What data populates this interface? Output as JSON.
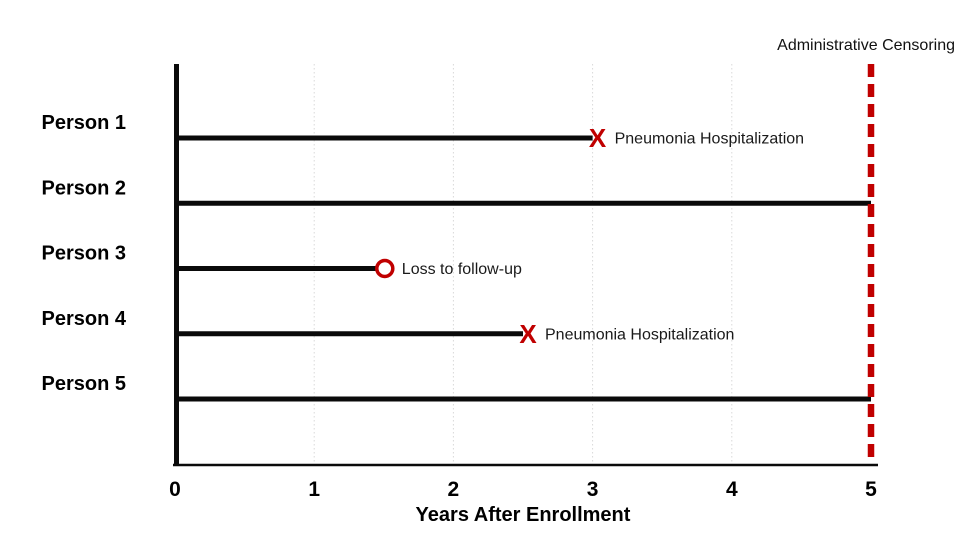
{
  "page": {
    "background": "#ffffff"
  },
  "chart_data": {
    "type": "line",
    "subtype": "swimmer-timeline",
    "title": "",
    "xlabel": "Years After Enrollment",
    "ylabel": "",
    "xlim": [
      0,
      5
    ],
    "xticks": [
      "0",
      "1",
      "2",
      "3",
      "4",
      "5"
    ],
    "grid": "vertical dotted gridlines at each year",
    "legend": "none",
    "persons": [
      {
        "label": "Person 1",
        "start": 0,
        "end": 3.0,
        "marker": "X",
        "event_label": "Pneumonia Hospitalization"
      },
      {
        "label": "Person 2",
        "start": 0,
        "end": 5.0,
        "marker": "",
        "event_label": ""
      },
      {
        "label": "Person 3",
        "start": 0,
        "end": 1.5,
        "marker": "O",
        "event_label": "Loss to follow-up"
      },
      {
        "label": "Person 4",
        "start": 0,
        "end": 2.5,
        "marker": "X",
        "event_label": "Pneumonia Hospitalization"
      },
      {
        "label": "Person 5",
        "start": 0,
        "end": 5.0,
        "marker": "",
        "event_label": ""
      }
    ],
    "censor_line": {
      "x": 5,
      "label": "Administrative Censoring",
      "color": "#c00000",
      "style": "dashed"
    },
    "colors": {
      "line_black": "#0a0a0a",
      "event_red": "#c00000",
      "grid_gray": "#d9d9d9",
      "axis_black": "#0a0a0a",
      "annotation_text": "#1a1a1a"
    }
  }
}
